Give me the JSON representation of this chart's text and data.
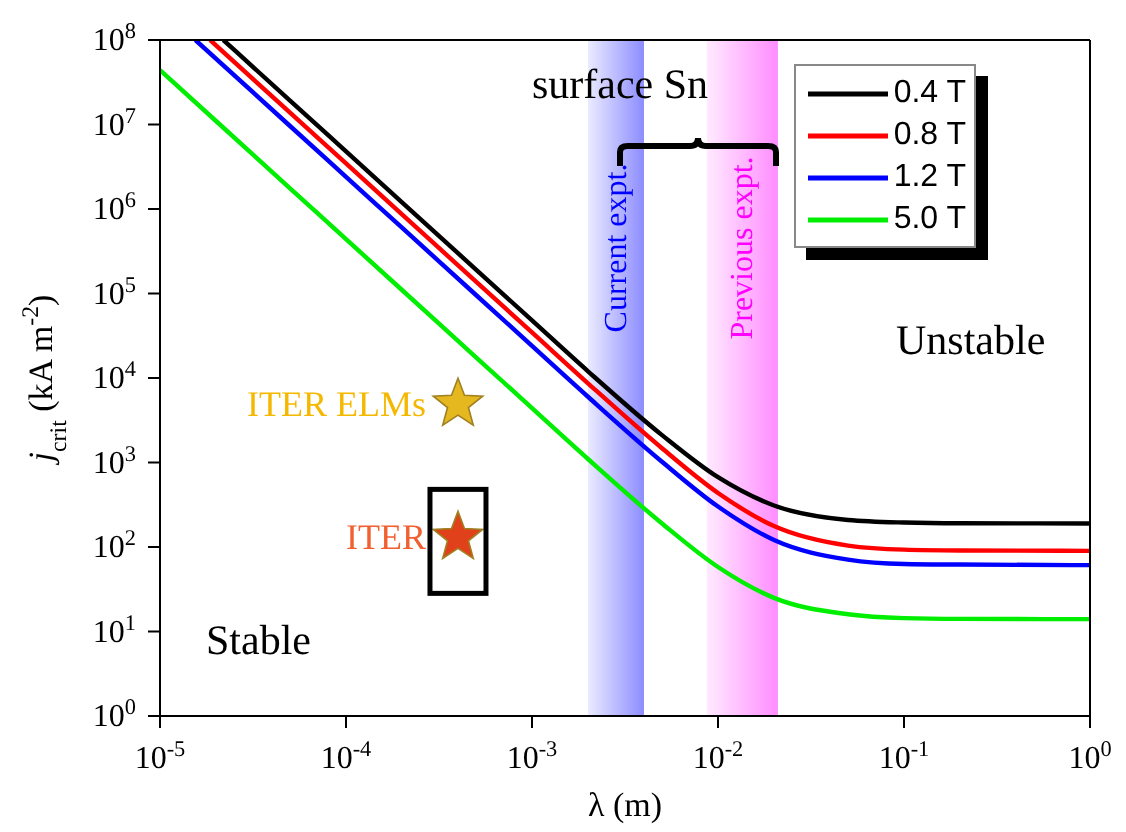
{
  "chart_data": {
    "type": "line",
    "xlabel": "λ (m)",
    "ylabel": "j$_{crit}$ (kA m$^{-2}$)",
    "log": "xy",
    "xlim": [
      1e-05,
      1
    ],
    "ylim": [
      1,
      100000000
    ],
    "xticks": [
      {
        "value": 1e-05,
        "label": "10$^{-5}$"
      },
      {
        "value": 0.0001,
        "label": "10$^{-4}$"
      },
      {
        "value": 0.001,
        "label": "10$^{-3}$"
      },
      {
        "value": 0.01,
        "label": "10$^{-2}$"
      },
      {
        "value": 0.1,
        "label": "10$^{-1}$"
      },
      {
        "value": 1,
        "label": "10$^{0}$"
      }
    ],
    "yticks": [
      {
        "value": 1,
        "label": "10$^{0}$"
      },
      {
        "value": 10,
        "label": "10$^{1}$"
      },
      {
        "value": 100,
        "label": "10$^{2}$"
      },
      {
        "value": 1000,
        "label": "10$^{3}$"
      },
      {
        "value": 10000,
        "label": "10$^{4}$"
      },
      {
        "value": 100000,
        "label": "10$^{5}$"
      },
      {
        "value": 1000000,
        "label": "10$^{6}$"
      },
      {
        "value": 10000000,
        "label": "10$^{7}$"
      },
      {
        "value": 100000000,
        "label": "10$^{8}$"
      }
    ],
    "grid": false,
    "legend": "top right",
    "marker": "none",
    "line_style": "solid",
    "series": [
      {
        "name": "0.4 T",
        "color": "#000000",
        "x": [
          2.19e-05,
          5e-05,
          0.0001,
          0.0002,
          0.0005,
          0.001,
          0.002,
          0.005,
          0.01,
          0.02,
          0.05,
          0.1,
          0.2,
          1
        ],
        "values": [
          100000000,
          19200000,
          4800000,
          1200000,
          192000,
          48000,
          12000,
          2110,
          670,
          310,
          209,
          195,
          191,
          190
        ]
      },
      {
        "name": "0.8 T",
        "color": "#ff0000",
        "x": [
          1.86e-05,
          5e-05,
          0.0001,
          0.0002,
          0.0005,
          0.001,
          0.002,
          0.005,
          0.01,
          0.02,
          0.05,
          0.1,
          0.2,
          1
        ],
        "values": [
          100000000,
          13800000,
          3460000,
          865000,
          138000,
          34600,
          8650,
          1474,
          436,
          177,
          104,
          93,
          91,
          90
        ]
      },
      {
        "name": "1.2 T",
        "color": "#0000ff",
        "x": [
          1.55e-05,
          5e-05,
          0.0001,
          0.0002,
          0.0005,
          0.001,
          0.002,
          0.005,
          0.01,
          0.02,
          0.05,
          0.1,
          0.2,
          1
        ],
        "values": [
          100000000,
          9600000,
          2400000,
          600000,
          96000,
          24000,
          6000,
          1021,
          301,
          121,
          71,
          63,
          62,
          61
        ]
      },
      {
        "name": "5.0 T",
        "color": "#00ee00",
        "x": [
          1e-05,
          2e-05,
          5e-05,
          0.0001,
          0.0002,
          0.0005,
          0.001,
          0.002,
          0.005,
          0.01,
          0.02,
          0.05,
          0.1,
          0.2,
          1
        ],
        "values": [
          44000000,
          11000000,
          1760000,
          440000,
          110000,
          17600,
          4400,
          1100,
          190,
          58,
          25,
          16,
          14.4,
          14.1,
          14
        ]
      },
      {
        "type": "scatter",
        "marker": "star",
        "x": [
          0.0004,
          0.0004
        ],
        "values": [
          4900,
          130
        ],
        "colors": [
          "#e6b820",
          "#e0401a"
        ]
      }
    ],
    "bands": [
      {
        "axis": "x",
        "from": 0.002,
        "to": 0.004,
        "label": "Current expt.",
        "color": "#0000ff"
      },
      {
        "axis": "x",
        "from": 0.0087,
        "to": 0.021,
        "label": "Previous expt.",
        "color": "#ff00ff"
      }
    ],
    "annotations": [
      {
        "text": "ITER ELMs",
        "x": 0.0004,
        "y": 4900
      },
      {
        "text": "ITER",
        "x": 0.0004,
        "y": 130
      },
      "surface Sn",
      "Unstable",
      "Stable"
    ]
  }
}
